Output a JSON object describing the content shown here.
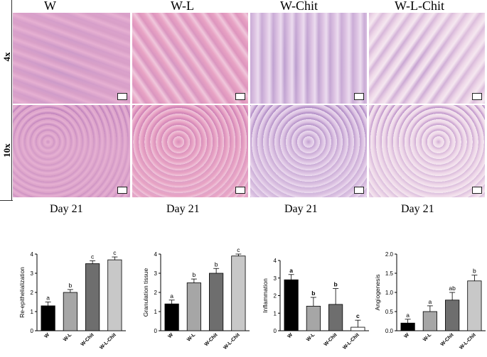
{
  "columns": [
    "W",
    "W-L",
    "W-Chit",
    "W-L-Chit"
  ],
  "rows": [
    "4x",
    "10x"
  ],
  "day_label": "Day 21",
  "micrograph_colors": {
    "W": [
      "#e6b0d2",
      "#b879b8",
      "#d9a0c8"
    ],
    "W-L": [
      "#e8a3c4",
      "#c878b2",
      "#f0c8dc"
    ],
    "W-Chit": [
      "#dcc2e2",
      "#a67fbf",
      "#ecdcef"
    ],
    "W-L-Chit": [
      "#eed7e8",
      "#b586c4",
      "#f5e8f0"
    ]
  },
  "chart_data": [
    {
      "type": "bar",
      "ylabel": "Re-epithelialization",
      "categories": [
        "W",
        "W-L",
        "W-Chit",
        "W-L-Chit"
      ],
      "values": [
        1.3,
        2.0,
        3.5,
        3.7
      ],
      "errors": [
        0.2,
        0.15,
        0.15,
        0.15
      ],
      "letters": [
        "a",
        "b",
        "c",
        "c"
      ],
      "letters_bold": false,
      "colors": [
        "#000000",
        "#a6a6a6",
        "#6e6e6e",
        "#c8c8c8"
      ],
      "ylim": [
        0,
        4
      ],
      "yticks": [
        "0",
        "1",
        "2",
        "3",
        "4"
      ]
    },
    {
      "type": "bar",
      "ylabel": "Granulation tissue",
      "categories": [
        "W",
        "W-L",
        "W-Chit",
        "W-L-Chit"
      ],
      "values": [
        1.4,
        2.5,
        3.0,
        3.9
      ],
      "errors": [
        0.2,
        0.2,
        0.25,
        0.1
      ],
      "letters": [
        "a",
        "b",
        "b",
        "c"
      ],
      "letters_bold": false,
      "colors": [
        "#000000",
        "#a6a6a6",
        "#6e6e6e",
        "#c8c8c8"
      ],
      "ylim": [
        0,
        4
      ],
      "yticks": [
        "0",
        "1",
        "2",
        "3",
        "4"
      ]
    },
    {
      "type": "bar",
      "ylabel": "Inflammation",
      "categories": [
        "W",
        "W-L",
        "W-Chit",
        "W-L-Chit"
      ],
      "values": [
        2.9,
        1.4,
        1.5,
        0.2
      ],
      "errors": [
        0.3,
        0.5,
        0.9,
        0.4
      ],
      "letters": [
        "a",
        "b",
        "b",
        "c"
      ],
      "letters_bold": true,
      "colors": [
        "#000000",
        "#a6a6a6",
        "#6e6e6e",
        "#ffffff"
      ],
      "ylim": [
        0,
        4
      ],
      "yticks": [
        "0",
        "1",
        "2",
        "3",
        "4"
      ]
    },
    {
      "type": "bar",
      "ylabel": "Angiogenesis",
      "categories": [
        "W",
        "W-L",
        "W-Chit",
        "W-L-Chit"
      ],
      "values": [
        0.2,
        0.5,
        0.8,
        1.3
      ],
      "errors": [
        0.1,
        0.15,
        0.2,
        0.15
      ],
      "letters": [
        "a",
        "a",
        "ab",
        "b"
      ],
      "letters_bold": false,
      "colors": [
        "#000000",
        "#a6a6a6",
        "#6e6e6e",
        "#c8c8c8"
      ],
      "ylim": [
        0,
        2
      ],
      "yticks": [
        "0.0",
        "0.5",
        "1.0",
        "1.5",
        "2.0"
      ]
    }
  ]
}
